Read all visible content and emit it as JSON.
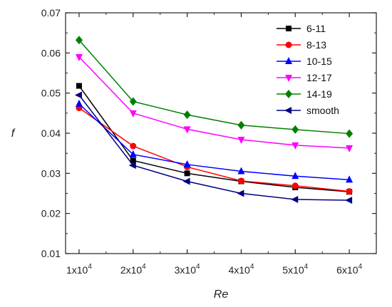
{
  "chart_data": {
    "type": "line",
    "xlabel": "Re",
    "ylabel": "f",
    "x": [
      10000,
      20000,
      30000,
      40000,
      50000,
      60000
    ],
    "x_tick_labels": [
      {
        "base": "1x10",
        "exp": "4"
      },
      {
        "base": "2x10",
        "exp": "4"
      },
      {
        "base": "3x10",
        "exp": "4"
      },
      {
        "base": "4x10",
        "exp": "4"
      },
      {
        "base": "5x10",
        "exp": "4"
      },
      {
        "base": "6x10",
        "exp": "4"
      }
    ],
    "xlim": [
      7500,
      65000
    ],
    "ylim": [
      0.01,
      0.07
    ],
    "y_ticks": [
      "0.01",
      "0.02",
      "0.03",
      "0.04",
      "0.05",
      "0.06",
      "0.07"
    ],
    "grid": false,
    "legend_position": "top-right",
    "series": [
      {
        "name": "6-11",
        "color": "#000000",
        "marker": "square",
        "values": [
          0.0518,
          0.0332,
          0.03,
          0.028,
          0.0265,
          0.0254
        ]
      },
      {
        "name": "8-13",
        "color": "#ff0000",
        "marker": "circle",
        "values": [
          0.0463,
          0.0368,
          0.0316,
          0.0281,
          0.0269,
          0.0255
        ]
      },
      {
        "name": "10-15",
        "color": "#0000ff",
        "marker": "triangle-up",
        "values": [
          0.0473,
          0.0347,
          0.0322,
          0.0305,
          0.0293,
          0.0284
        ]
      },
      {
        "name": "12-17",
        "color": "#ff00ff",
        "marker": "triangle-down",
        "values": [
          0.059,
          0.045,
          0.041,
          0.0384,
          0.037,
          0.0363
        ]
      },
      {
        "name": "14-19",
        "color": "#008000",
        "marker": "diamond",
        "values": [
          0.0632,
          0.0479,
          0.0446,
          0.042,
          0.0409,
          0.0399
        ]
      },
      {
        "name": "smooth",
        "color": "#000080",
        "marker": "triangle-left",
        "values": [
          0.0495,
          0.032,
          0.028,
          0.025,
          0.0235,
          0.0233
        ]
      }
    ]
  }
}
